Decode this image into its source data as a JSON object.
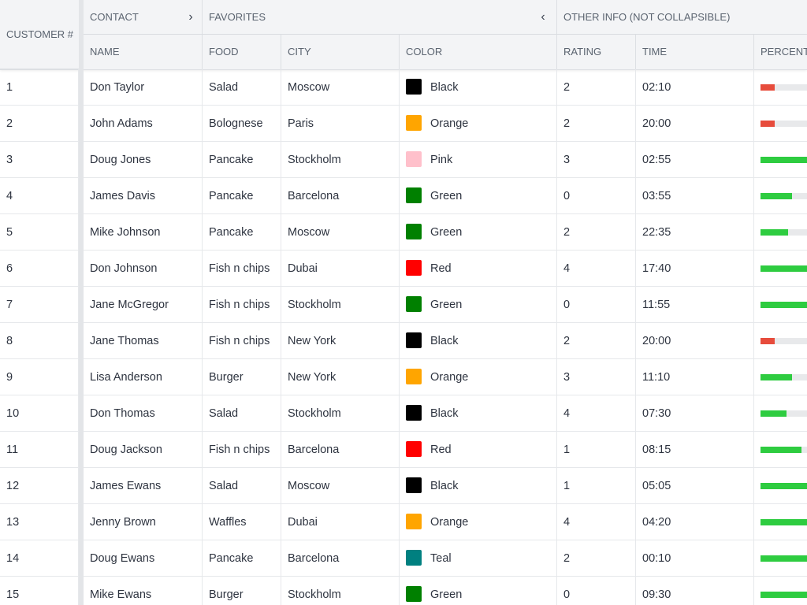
{
  "header": {
    "customer_label": "Customer #",
    "groups": {
      "contact": "Contact",
      "favorites": "Favorites",
      "other": "Other info (not collapsible)"
    },
    "columns": {
      "name": "Name",
      "food": "Food",
      "city": "City",
      "color": "Color",
      "rating": "Rating",
      "time": "Time",
      "percent": "Percent Done"
    }
  },
  "colors": {
    "bar_high": "#2ecc40",
    "bar_low": "#e74c3c"
  },
  "rows": [
    {
      "id": "1",
      "name": "Don Taylor",
      "food": "Salad",
      "city": "Moscow",
      "color": "Black",
      "swatch": "#000000",
      "rating": "2",
      "time": "02:10",
      "percent": 22
    },
    {
      "id": "2",
      "name": "John Adams",
      "food": "Bolognese",
      "city": "Paris",
      "color": "Orange",
      "swatch": "#ffa500",
      "rating": "2",
      "time": "20:00",
      "percent": 22
    },
    {
      "id": "3",
      "name": "Doug Jones",
      "food": "Pancake",
      "city": "Stockholm",
      "color": "Pink",
      "swatch": "#ffc0cb",
      "rating": "3",
      "time": "02:55",
      "percent": 90
    },
    {
      "id": "4",
      "name": "James Davis",
      "food": "Pancake",
      "city": "Barcelona",
      "color": "Green",
      "swatch": "#008000",
      "rating": "0",
      "time": "03:55",
      "percent": 50
    },
    {
      "id": "5",
      "name": "Mike Johnson",
      "food": "Pancake",
      "city": "Moscow",
      "color": "Green",
      "swatch": "#008000",
      "rating": "2",
      "time": "22:35",
      "percent": 44
    },
    {
      "id": "6",
      "name": "Don Johnson",
      "food": "Fish n chips",
      "city": "Dubai",
      "color": "Red",
      "swatch": "#ff0000",
      "rating": "4",
      "time": "17:40",
      "percent": 90
    },
    {
      "id": "7",
      "name": "Jane McGregor",
      "food": "Fish n chips",
      "city": "Stockholm",
      "color": "Green",
      "swatch": "#008000",
      "rating": "0",
      "time": "11:55",
      "percent": 90
    },
    {
      "id": "8",
      "name": "Jane Thomas",
      "food": "Fish n chips",
      "city": "New York",
      "color": "Black",
      "swatch": "#000000",
      "rating": "2",
      "time": "20:00",
      "percent": 22
    },
    {
      "id": "9",
      "name": "Lisa Anderson",
      "food": "Burger",
      "city": "New York",
      "color": "Orange",
      "swatch": "#ffa500",
      "rating": "3",
      "time": "11:10",
      "percent": 50
    },
    {
      "id": "10",
      "name": "Don Thomas",
      "food": "Salad",
      "city": "Stockholm",
      "color": "Black",
      "swatch": "#000000",
      "rating": "4",
      "time": "07:30",
      "percent": 41
    },
    {
      "id": "11",
      "name": "Doug Jackson",
      "food": "Fish n chips",
      "city": "Barcelona",
      "color": "Red",
      "swatch": "#ff0000",
      "rating": "1",
      "time": "08:15",
      "percent": 65
    },
    {
      "id": "12",
      "name": "James Ewans",
      "food": "Salad",
      "city": "Moscow",
      "color": "Black",
      "swatch": "#000000",
      "rating": "1",
      "time": "05:05",
      "percent": 90
    },
    {
      "id": "13",
      "name": "Jenny Brown",
      "food": "Waffles",
      "city": "Dubai",
      "color": "Orange",
      "swatch": "#ffa500",
      "rating": "4",
      "time": "04:20",
      "percent": 90
    },
    {
      "id": "14",
      "name": "Doug Ewans",
      "food": "Pancake",
      "city": "Barcelona",
      "color": "Teal",
      "swatch": "#008080",
      "rating": "2",
      "time": "00:10",
      "percent": 90
    },
    {
      "id": "15",
      "name": "Mike Ewans",
      "food": "Burger",
      "city": "Stockholm",
      "color": "Green",
      "swatch": "#008000",
      "rating": "0",
      "time": "09:30",
      "percent": 90
    }
  ]
}
